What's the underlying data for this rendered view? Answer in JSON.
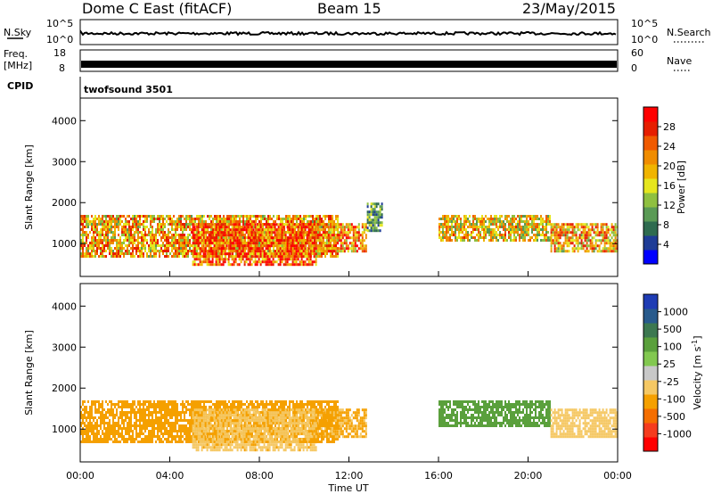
{
  "header": {
    "station": "Dome C East (fitACF)",
    "beam": "Beam 15",
    "date": "23/May/2015"
  },
  "panels": {
    "nsky": {
      "label": "N.Sky",
      "ticks": [
        "10^5",
        "10^0"
      ]
    },
    "nsearch": {
      "label": "N.Search",
      "ticks": [
        "10^5",
        "10^0"
      ]
    },
    "freq": {
      "label_line1": "Freq.",
      "label_line2": "[MHz]",
      "ticks": [
        "18",
        "8"
      ]
    },
    "nave": {
      "label": "Nave",
      "ticks": [
        "60",
        "0"
      ]
    },
    "cpid": {
      "label": "CPID",
      "value": "twofsound 3501"
    }
  },
  "colors": {
    "power": [
      "#0000ff",
      "#1e3c96",
      "#2e6b4f",
      "#5a9a55",
      "#8fc040",
      "#e6e61e",
      "#f0b400",
      "#f08c00",
      "#f05a00",
      "#e61e00",
      "#ff0000"
    ],
    "velocity": [
      "#ff0000",
      "#f53c1e",
      "#f56e00",
      "#f5a000",
      "#f5c864",
      "#c8c8c8",
      "#82c850",
      "#5aa03c",
      "#3c7850",
      "#285a8c",
      "#1e3cb4"
    ]
  },
  "chart_data": [
    {
      "type": "heatmap",
      "name": "power",
      "ylabel": "Slant Range [km]",
      "yticks": [
        "1000",
        "2000",
        "3000",
        "4000"
      ],
      "ylim": [
        200,
        4550
      ],
      "xlim": [
        0,
        24
      ],
      "colorbar_label": "Power [dB]",
      "colorbar_ticks": [
        "4",
        "8",
        "12",
        "16",
        "20",
        "24",
        "28"
      ],
      "colorbar_range": [
        0,
        32
      ],
      "echo_regions": [
        {
          "x": [
            0.0,
            11.5
          ],
          "y": [
            700,
            1700
          ],
          "level": 20
        },
        {
          "x": [
            5.0,
            10.5
          ],
          "y": [
            500,
            1500
          ],
          "level": 26
        },
        {
          "x": [
            10.5,
            12.8
          ],
          "y": [
            800,
            1500
          ],
          "level": 22
        },
        {
          "x": [
            12.8,
            13.5
          ],
          "y": [
            1300,
            2000
          ],
          "level": 10
        },
        {
          "x": [
            16.0,
            21.0
          ],
          "y": [
            1100,
            1700
          ],
          "level": 18
        },
        {
          "x": [
            21.0,
            24.0
          ],
          "y": [
            800,
            1500
          ],
          "level": 20
        }
      ]
    },
    {
      "type": "heatmap",
      "name": "velocity",
      "ylabel": "Slant Range [km]",
      "yticks": [
        "1000",
        "2000",
        "3000",
        "4000"
      ],
      "ylim": [
        200,
        4550
      ],
      "xlabel": "Time UT",
      "xticks": [
        "00:00",
        "04:00",
        "08:00",
        "12:00",
        "16:00",
        "20:00",
        "00:00"
      ],
      "xlim": [
        0,
        24
      ],
      "colorbar_label": "Velocity [m s-1]",
      "colorbar_ticks": [
        "-1000",
        "-500",
        "-100",
        "-25",
        "25",
        "100",
        "500",
        "1000"
      ],
      "echo_regions": [
        {
          "x": [
            0.0,
            11.5
          ],
          "y": [
            700,
            1700
          ],
          "level": -150
        },
        {
          "x": [
            5.0,
            10.5
          ],
          "y": [
            500,
            1500
          ],
          "level": -80
        },
        {
          "x": [
            10.5,
            12.8
          ],
          "y": [
            800,
            1500
          ],
          "level": -120
        },
        {
          "x": [
            16.0,
            21.0
          ],
          "y": [
            1100,
            1700
          ],
          "level": 150
        },
        {
          "x": [
            21.0,
            24.0
          ],
          "y": [
            800,
            1500
          ],
          "level": -60
        }
      ]
    }
  ]
}
